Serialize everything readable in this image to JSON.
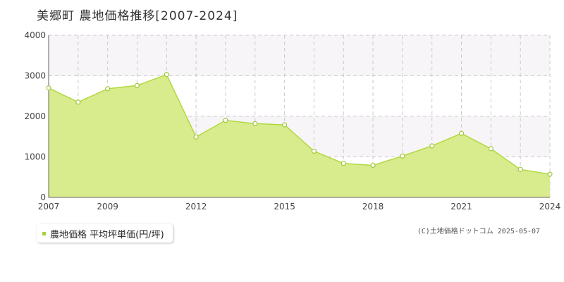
{
  "title": "美郷町 農地価格推移[2007-2024]",
  "chart_data": {
    "type": "area",
    "x": [
      2007,
      2008,
      2009,
      2010,
      2011,
      2012,
      2013,
      2014,
      2015,
      2016,
      2017,
      2018,
      2019,
      2020,
      2021,
      2022,
      2023,
      2024
    ],
    "series": [
      {
        "name": "農地価格 平均坪単価(円/坪)",
        "values": [
          2700,
          2350,
          2680,
          2760,
          3030,
          1490,
          1900,
          1820,
          1790,
          1140,
          840,
          790,
          1020,
          1270,
          1580,
          1200,
          690,
          570
        ]
      }
    ],
    "x_tick_labels": [
      "2007",
      "2009",
      "2012",
      "2015",
      "2018",
      "2021",
      "2024"
    ],
    "y_tick_labels": [
      "0",
      "1000",
      "2000",
      "3000",
      "4000"
    ],
    "ylim": [
      0,
      4000
    ],
    "grid": true,
    "legend_position": "bottom-left"
  },
  "colors": {
    "fill": "#d8ec8e",
    "line": "#b2d83d",
    "marker_fill": "#ffffff",
    "marker_stroke": "#9ec83a",
    "grid": "#cccccc",
    "band": "#f7f5f7",
    "legend_swatch": "#a9d13a"
  },
  "credit": "(C)土地価格ドットコム 2025-05-07"
}
